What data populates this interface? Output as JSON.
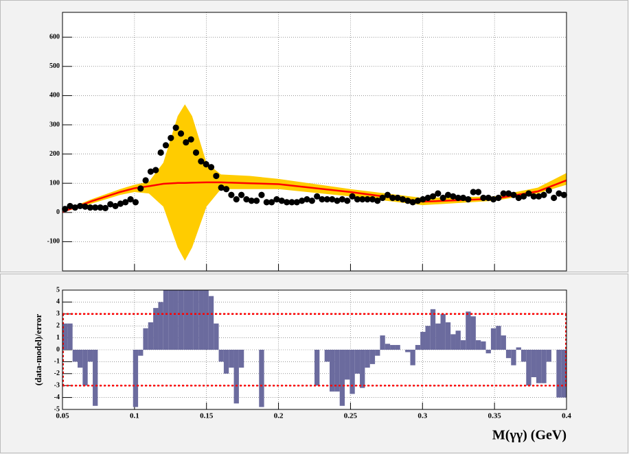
{
  "chart_data": [
    {
      "type": "scatter",
      "color": "#000000",
      "x": [
        0.05175,
        0.05525,
        0.05875,
        0.06225,
        0.06575,
        0.06925,
        0.07275,
        0.07625,
        0.07975,
        0.08325,
        0.08675,
        0.09025,
        0.09375,
        0.09725,
        0.10075,
        0.10425,
        0.10775,
        0.11125,
        0.11475,
        0.11825,
        0.12175,
        0.12525,
        0.12875,
        0.13225,
        0.13575,
        0.13925,
        0.14275,
        0.14625,
        0.14975,
        0.15325,
        0.15675,
        0.16025,
        0.16375,
        0.16725,
        0.17075,
        0.17425,
        0.17775,
        0.18125,
        0.18475,
        0.18825,
        0.19175,
        0.19525,
        0.19875,
        0.20225,
        0.20575,
        0.20925,
        0.21275,
        0.21625,
        0.21975,
        0.22325,
        0.22675,
        0.23025,
        0.23375,
        0.23725,
        0.24075,
        0.24425,
        0.24775,
        0.25125,
        0.25475,
        0.25825,
        0.26175,
        0.26525,
        0.26875,
        0.27225,
        0.27575,
        0.27925,
        0.28275,
        0.28625,
        0.28975,
        0.29325,
        0.29675,
        0.30025,
        0.30375,
        0.30725,
        0.31075,
        0.31425,
        0.31775,
        0.32125,
        0.32475,
        0.32825,
        0.33175,
        0.33525,
        0.33875,
        0.34225,
        0.34575,
        0.34925,
        0.35275,
        0.35625,
        0.35975,
        0.36325,
        0.36675,
        0.37025,
        0.37375,
        0.37725,
        0.38075,
        0.38425,
        0.38775,
        0.39125,
        0.39475,
        0.39825
      ],
      "values": [
        12,
        22,
        17,
        22,
        20,
        17,
        17,
        17,
        15,
        28,
        22,
        30,
        35,
        45,
        35,
        82,
        110,
        140,
        145,
        205,
        230,
        255,
        290,
        270,
        240,
        250,
        205,
        175,
        165,
        155,
        125,
        85,
        80,
        60,
        45,
        60,
        45,
        40,
        40,
        60,
        35,
        35,
        45,
        40,
        35,
        35,
        35,
        40,
        45,
        40,
        55,
        45,
        45,
        45,
        40,
        45,
        40,
        55,
        45,
        45,
        45,
        45,
        40,
        50,
        60,
        50,
        50,
        45,
        40,
        35,
        40,
        45,
        50,
        55,
        65,
        50,
        60,
        55,
        50,
        50,
        45,
        70,
        70,
        50,
        50,
        45,
        50,
        65,
        65,
        60,
        50,
        55,
        65,
        55,
        55,
        60,
        75,
        50,
        65,
        60
      ],
      "model": {
        "color": "#ff0000",
        "x": [
          0.05,
          0.07,
          0.09,
          0.1,
          0.11,
          0.12,
          0.13,
          0.135,
          0.14,
          0.15,
          0.16,
          0.18,
          0.2,
          0.25,
          0.3,
          0.35,
          0.38,
          0.4
        ],
        "values": [
          2,
          38,
          70,
          83,
          90,
          98,
          101,
          101,
          102,
          103,
          103,
          100,
          97,
          70,
          37,
          47,
          72,
          110
        ]
      },
      "band": {
        "color": "#ffcc00",
        "x": [
          0.05,
          0.07,
          0.09,
          0.1,
          0.11,
          0.12,
          0.13,
          0.135,
          0.14,
          0.15,
          0.16,
          0.18,
          0.2,
          0.25,
          0.3,
          0.35,
          0.38,
          0.4
        ],
        "upper": [
          5,
          45,
          80,
          95,
          105,
          170,
          330,
          370,
          330,
          170,
          130,
          125,
          115,
          80,
          50,
          55,
          85,
          135
        ],
        "lower": [
          0,
          30,
          60,
          70,
          65,
          20,
          -120,
          -165,
          -120,
          20,
          80,
          80,
          80,
          55,
          25,
          40,
          65,
          95
        ]
      },
      "xlim": [
        0.05,
        0.4
      ],
      "xticks": [
        0.05,
        0.1,
        0.15,
        0.2,
        0.25,
        0.3,
        0.35,
        0.4
      ],
      "ylim": [
        -200,
        685
      ],
      "yticks": [
        -100,
        0,
        100,
        200,
        300,
        400,
        500,
        600
      ],
      "grid": true
    },
    {
      "type": "histogram",
      "color": "#6b6b9e",
      "bins": [
        0.05,
        0.0535,
        0.057,
        0.0605,
        0.064,
        0.0675,
        0.071,
        0.0745,
        0.078,
        0.0815,
        0.085,
        0.0885,
        0.092,
        0.0955,
        0.099,
        0.1025,
        0.106,
        0.1095,
        0.113,
        0.1165,
        0.12,
        0.1235,
        0.127,
        0.1305,
        0.134,
        0.1375,
        0.141,
        0.1445,
        0.148,
        0.1515,
        0.155,
        0.1585,
        0.162,
        0.1655,
        0.169,
        0.1725,
        0.176,
        0.1795,
        0.183,
        0.1865,
        0.19,
        0.1935,
        0.197,
        0.2005,
        0.204,
        0.2075,
        0.211,
        0.2145,
        0.218,
        0.2215,
        0.225,
        0.2285,
        0.232,
        0.2355,
        0.239,
        0.2425,
        0.246,
        0.2495,
        0.253,
        0.2565,
        0.26,
        0.2635,
        0.267,
        0.2705,
        0.274,
        0.2775,
        0.281,
        0.2845,
        0.288,
        0.2915,
        0.295,
        0.2985,
        0.302,
        0.3055,
        0.309,
        0.3125,
        0.316,
        0.3195,
        0.323,
        0.3265,
        0.33,
        0.3335,
        0.337,
        0.3405,
        0.344,
        0.3475,
        0.351,
        0.3545,
        0.358,
        0.3615,
        0.365,
        0.3685,
        0.372,
        0.3755,
        0.379,
        0.3825,
        0.386,
        0.3895,
        0.393,
        0.3965,
        0.4
      ],
      "values": [
        2.2,
        2.2,
        -1,
        -1.5,
        -3,
        -1,
        -4.7,
        0,
        0,
        0,
        0,
        0,
        0,
        0,
        -4.8,
        -0.5,
        1.8,
        2.3,
        3.5,
        4,
        5,
        5,
        5,
        5,
        5,
        5,
        5,
        5,
        5,
        4.5,
        2.2,
        -1,
        -2,
        -1.5,
        -4.5,
        -1.5,
        0,
        0,
        0,
        -4.8,
        0,
        0,
        0,
        0,
        0,
        0,
        0,
        0,
        0,
        0,
        -3,
        0,
        -1,
        -3.5,
        -3.5,
        -4.7,
        -2.5,
        -3.7,
        -2,
        -3.2,
        -1.5,
        -1.2,
        -0.5,
        1.2,
        0.5,
        0.4,
        0.4,
        0,
        -0.2,
        -1.3,
        0.4,
        1.5,
        2,
        3.4,
        2.2,
        3,
        2.3,
        1.3,
        1.6,
        0.8,
        3.2,
        2.8,
        0.8,
        0.7,
        -0.3,
        1.8,
        2,
        1.2,
        -0.7,
        -1.3,
        0.2,
        -1,
        -3,
        -2.3,
        -2.8,
        -2.8,
        -1,
        0,
        -4,
        -4
      ],
      "reference_lines": [
        3,
        -3
      ],
      "reference_color": "#ff0000",
      "xlim": [
        0.05,
        0.4
      ],
      "xticks": [
        0.05,
        0.1,
        0.15,
        0.2,
        0.25,
        0.3,
        0.35,
        0.4
      ],
      "ylim": [
        -5,
        5
      ],
      "yticks": [
        -5,
        -4,
        -3,
        -2,
        -1,
        0,
        1,
        2,
        3,
        4,
        5
      ],
      "grid": true,
      "ylabel": "(data-model)/error",
      "xlabel": "M(γγ) (GeV)"
    }
  ]
}
